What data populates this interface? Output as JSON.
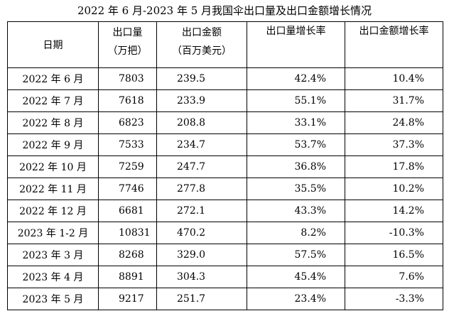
{
  "title": "2022 年 6 月-2023 年 5 月我国伞出口量及出口金额增长情况",
  "headers": {
    "date": "日期",
    "qty_line1": "出口量",
    "qty_line2": "（万把）",
    "amt_line1": "出口金额",
    "amt_line2": "（百万美元）",
    "qty_growth": "出口量增长率",
    "amt_growth": "出口金额增长率"
  },
  "rows": [
    {
      "date": "2022 年 6 月",
      "qty": "7803",
      "amt": "239.5",
      "qty_growth": "42.4%",
      "amt_growth": "10.4%"
    },
    {
      "date": "2022 年 7 月",
      "qty": "7618",
      "amt": "233.9",
      "qty_growth": "55.1%",
      "amt_growth": "31.7%"
    },
    {
      "date": "2022 年 8 月",
      "qty": "6823",
      "amt": "208.8",
      "qty_growth": "33.1%",
      "amt_growth": "24.8%"
    },
    {
      "date": "2022 年 9 月",
      "qty": "7533",
      "amt": "234.7",
      "qty_growth": "53.7%",
      "amt_growth": "37.3%"
    },
    {
      "date": "2022 年 10 月",
      "qty": "7259",
      "amt": "247.7",
      "qty_growth": "36.8%",
      "amt_growth": "17.8%"
    },
    {
      "date": "2022 年 11 月",
      "qty": "7746",
      "amt": "277.8",
      "qty_growth": "35.5%",
      "amt_growth": "10.2%"
    },
    {
      "date": "2022 年 12 月",
      "qty": "6681",
      "amt": "272.1",
      "qty_growth": "43.3%",
      "amt_growth": "14.2%"
    },
    {
      "date": "2023 年 1-2 月",
      "qty": "10831",
      "amt": "470.2",
      "qty_growth": "8.2%",
      "amt_growth": "-10.3%"
    },
    {
      "date": "2023 年 3 月",
      "qty": "8268",
      "amt": "329.0",
      "qty_growth": "57.5%",
      "amt_growth": "16.5%"
    },
    {
      "date": "2023 年 4 月",
      "qty": "8891",
      "amt": "304.3",
      "qty_growth": "45.4%",
      "amt_growth": "7.6%"
    },
    {
      "date": "2023 年 5 月",
      "qty": "9217",
      "amt": "251.7",
      "qty_growth": "23.4%",
      "amt_growth": "-3.3%"
    }
  ]
}
